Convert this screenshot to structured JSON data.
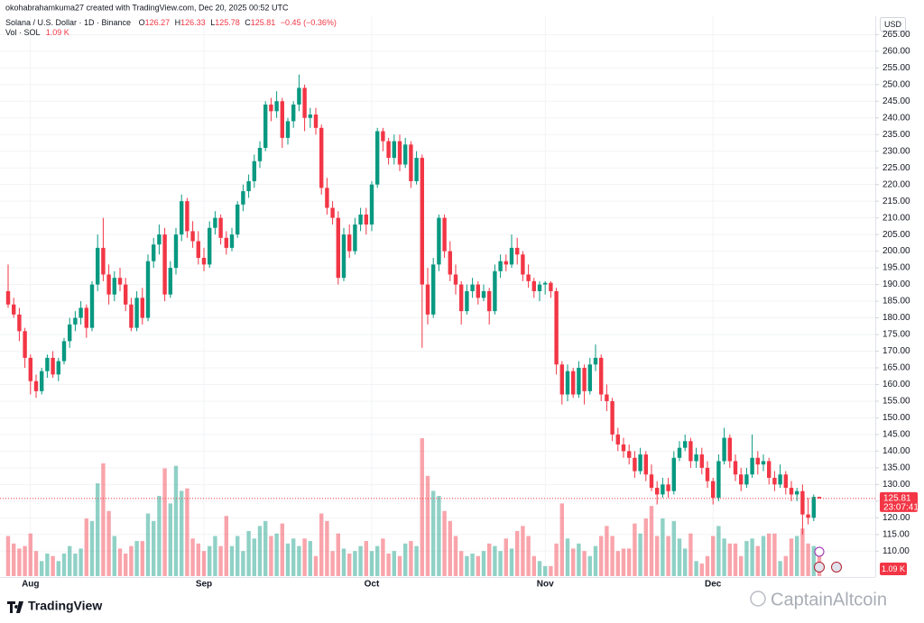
{
  "header": {
    "attribution": "okohabrahamkuma27 created with TradingView.com, Dec 20, 2025 00:52 UTC",
    "symbol": "Solana / U.S. Dollar · 1D · Binance",
    "o": "O",
    "h": "H",
    "l": "L",
    "c": "C",
    "change": "−0.45 (−0.36%)",
    "vol_label": "Vol · SOL",
    "vol_value": "1.09 K",
    "currency": "USD",
    "countdown": "23:07:41",
    "logo": "TradingView",
    "watermark": "CaptainAltcoin"
  },
  "chart_data": {
    "type": "candlestick",
    "up_color": "#089981",
    "down_color": "#f23645",
    "grid": true,
    "ylim": [
      102.5,
      270.5
    ],
    "yticks": [
      {
        "value": 110,
        "label": "110.00"
      },
      {
        "value": 115,
        "label": "115.00"
      },
      {
        "value": 120,
        "label": "120.00"
      },
      {
        "value": 125,
        "label": "125.00"
      },
      {
        "value": 130,
        "label": "130.00"
      },
      {
        "value": 135,
        "label": "135.00"
      },
      {
        "value": 140,
        "label": "140.00"
      },
      {
        "value": 145,
        "label": "145.00"
      },
      {
        "value": 150,
        "label": "150.00"
      },
      {
        "value": 155,
        "label": "155.00"
      },
      {
        "value": 160,
        "label": "160.00"
      },
      {
        "value": 165,
        "label": "165.00"
      },
      {
        "value": 170,
        "label": "170.00"
      },
      {
        "value": 175,
        "label": "175.00"
      },
      {
        "value": 180,
        "label": "180.00"
      },
      {
        "value": 185,
        "label": "185.00"
      },
      {
        "value": 190,
        "label": "190.00"
      },
      {
        "value": 195,
        "label": "195.00"
      },
      {
        "value": 200,
        "label": "200.00"
      },
      {
        "value": 205,
        "label": "205.00"
      },
      {
        "value": 210,
        "label": "210.00"
      },
      {
        "value": 215,
        "label": "215.00"
      },
      {
        "value": 220,
        "label": "220.00"
      },
      {
        "value": 225,
        "label": "225.00"
      },
      {
        "value": 230,
        "label": "230.00"
      },
      {
        "value": 235,
        "label": "235.00"
      },
      {
        "value": 240,
        "label": "240.00"
      },
      {
        "value": 245,
        "label": "245.00"
      },
      {
        "value": 250,
        "label": "250.00"
      },
      {
        "value": 255,
        "label": "255.00"
      },
      {
        "value": 260,
        "label": "260.00"
      },
      {
        "value": 265,
        "label": "265.00"
      }
    ],
    "xticks": [
      {
        "value": 4,
        "label": "Aug"
      },
      {
        "value": 35,
        "label": "Sep"
      },
      {
        "value": 65,
        "label": "Oct"
      },
      {
        "value": 96,
        "label": "Nov"
      },
      {
        "value": 126,
        "label": "Dec"
      }
    ],
    "ohlc": [
      [
        188,
        196,
        183,
        184
      ],
      [
        184,
        186,
        180,
        181
      ],
      [
        181,
        183,
        173,
        176
      ],
      [
        176,
        177,
        165,
        168
      ],
      [
        168,
        169,
        157,
        161
      ],
      [
        161,
        163,
        156,
        158
      ],
      [
        158,
        165,
        157,
        164
      ],
      [
        164,
        169,
        162,
        168
      ],
      [
        168,
        170,
        162,
        163
      ],
      [
        163,
        168,
        161,
        167
      ],
      [
        167,
        174,
        166,
        173
      ],
      [
        173,
        180,
        171,
        178
      ],
      [
        178,
        182,
        176,
        180
      ],
      [
        180,
        185,
        178,
        183
      ],
      [
        183,
        184,
        174,
        177
      ],
      [
        177,
        191,
        176,
        190
      ],
      [
        190,
        205,
        188,
        201
      ],
      [
        201,
        210,
        191,
        193
      ],
      [
        193,
        196,
        184,
        187
      ],
      [
        187,
        194,
        185,
        192
      ],
      [
        192,
        195,
        188,
        190
      ],
      [
        190,
        192,
        182,
        184
      ],
      [
        184,
        186,
        176,
        177
      ],
      [
        177,
        188,
        176,
        186
      ],
      [
        186,
        189,
        178,
        180
      ],
      [
        180,
        199,
        179,
        197
      ],
      [
        197,
        204,
        195,
        202
      ],
      [
        202,
        208,
        199,
        205
      ],
      [
        205,
        207,
        185,
        187
      ],
      [
        187,
        197,
        186,
        195
      ],
      [
        195,
        207,
        193,
        205
      ],
      [
        205,
        217,
        203,
        215
      ],
      [
        215,
        216,
        204,
        206
      ],
      [
        206,
        209,
        201,
        203
      ],
      [
        203,
        206,
        196,
        198
      ],
      [
        198,
        201,
        194,
        196
      ],
      [
        196,
        209,
        195,
        207
      ],
      [
        207,
        212,
        205,
        210
      ],
      [
        210,
        211,
        202,
        204
      ],
      [
        204,
        206,
        199,
        201
      ],
      [
        201,
        207,
        200,
        205
      ],
      [
        205,
        215,
        204,
        214
      ],
      [
        214,
        220,
        212,
        218
      ],
      [
        218,
        223,
        216,
        221
      ],
      [
        221,
        229,
        219,
        227
      ],
      [
        227,
        233,
        225,
        231
      ],
      [
        231,
        245,
        230,
        244
      ],
      [
        244,
        246,
        239,
        242
      ],
      [
        242,
        248,
        240,
        245
      ],
      [
        245,
        246,
        231,
        234
      ],
      [
        234,
        240,
        232,
        239
      ],
      [
        239,
        245,
        237,
        244
      ],
      [
        244,
        253,
        242,
        249
      ],
      [
        249,
        250,
        236,
        240
      ],
      [
        240,
        243,
        237,
        241
      ],
      [
        241,
        243,
        235,
        237
      ],
      [
        237,
        238,
        217,
        219
      ],
      [
        219,
        222,
        211,
        213
      ],
      [
        213,
        215,
        208,
        210
      ],
      [
        210,
        212,
        190,
        192
      ],
      [
        192,
        207,
        191,
        205
      ],
      [
        205,
        208,
        198,
        200
      ],
      [
        200,
        210,
        199,
        208
      ],
      [
        208,
        213,
        206,
        211
      ],
      [
        211,
        213,
        205,
        208
      ],
      [
        208,
        221,
        206,
        220
      ],
      [
        220,
        237,
        219,
        236
      ],
      [
        236,
        237,
        230,
        233
      ],
      [
        233,
        234,
        226,
        228
      ],
      [
        228,
        235,
        226,
        233
      ],
      [
        233,
        235,
        224,
        226
      ],
      [
        226,
        234,
        225,
        232
      ],
      [
        232,
        233,
        219,
        221
      ],
      [
        221,
        230,
        220,
        228
      ],
      [
        228,
        229,
        171,
        190
      ],
      [
        190,
        195,
        178,
        181
      ],
      [
        181,
        198,
        180,
        196
      ],
      [
        196,
        211,
        194,
        210
      ],
      [
        210,
        211,
        198,
        200
      ],
      [
        200,
        203,
        191,
        193
      ],
      [
        193,
        196,
        187,
        190
      ],
      [
        190,
        191,
        178,
        182
      ],
      [
        182,
        190,
        181,
        188
      ],
      [
        188,
        192,
        186,
        190
      ],
      [
        190,
        191,
        184,
        186
      ],
      [
        186,
        190,
        185,
        188
      ],
      [
        188,
        189,
        178,
        182
      ],
      [
        182,
        196,
        181,
        194
      ],
      [
        194,
        199,
        192,
        197
      ],
      [
        197,
        199,
        194,
        196
      ],
      [
        196,
        205,
        195,
        201
      ],
      [
        201,
        204,
        196,
        199
      ],
      [
        199,
        200,
        191,
        193
      ],
      [
        193,
        196,
        189,
        191
      ],
      [
        191,
        192,
        186,
        188
      ],
      [
        188,
        191,
        185,
        190
      ],
      [
        190,
        191,
        187,
        190.5
      ],
      [
        190.5,
        191,
        186,
        188
      ],
      [
        188,
        189,
        163,
        166
      ],
      [
        166,
        167,
        154,
        157
      ],
      [
        157,
        166,
        155,
        164
      ],
      [
        164,
        165,
        156,
        157
      ],
      [
        157,
        167,
        156,
        165
      ],
      [
        165,
        166,
        154,
        158
      ],
      [
        158,
        168,
        157,
        166
      ],
      [
        166,
        172,
        164,
        168
      ],
      [
        168,
        169,
        155,
        157
      ],
      [
        157,
        160,
        152,
        155
      ],
      [
        155,
        156,
        143,
        145
      ],
      [
        145,
        147,
        140,
        142
      ],
      [
        142,
        144,
        138,
        140
      ],
      [
        140,
        142,
        136,
        138
      ],
      [
        138,
        140,
        132,
        134
      ],
      [
        134,
        141,
        133,
        139
      ],
      [
        139,
        140,
        131,
        133
      ],
      [
        133,
        136,
        128,
        129
      ],
      [
        129,
        131,
        124,
        127
      ],
      [
        127,
        132,
        126,
        130
      ],
      [
        130,
        132,
        126,
        128
      ],
      [
        128,
        140,
        127,
        138
      ],
      [
        138,
        143,
        137,
        141
      ],
      [
        141,
        145,
        140,
        143
      ],
      [
        143,
        144,
        135,
        137
      ],
      [
        137,
        141,
        135,
        139
      ],
      [
        139,
        141,
        133,
        135
      ],
      [
        135,
        137,
        129,
        131
      ],
      [
        131,
        132,
        124,
        126
      ],
      [
        126,
        139,
        125,
        137
      ],
      [
        137,
        147,
        136,
        144
      ],
      [
        144,
        145,
        135,
        137
      ],
      [
        137,
        139,
        131,
        133
      ],
      [
        133,
        135,
        128,
        130
      ],
      [
        130,
        135,
        129,
        133
      ],
      [
        133,
        145,
        132,
        138
      ],
      [
        138,
        140,
        133,
        136
      ],
      [
        136,
        139,
        134,
        137
      ],
      [
        137,
        138,
        130,
        132
      ],
      [
        132,
        134,
        128,
        130
      ],
      [
        130,
        136,
        129,
        133
      ],
      [
        133,
        134,
        127,
        129
      ],
      [
        129,
        131,
        125,
        127
      ],
      [
        127,
        129,
        125,
        128
      ],
      [
        128,
        130,
        115,
        121
      ],
      [
        121,
        126,
        118,
        120
      ],
      [
        120,
        127,
        119,
        126.27
      ],
      [
        126.27,
        126.33,
        125.78,
        125.81
      ]
    ],
    "volume": [
      1.6,
      1.3,
      1.1,
      1.2,
      1.7,
      1.0,
      0.6,
      0.9,
      0.8,
      0.6,
      0.9,
      1.2,
      0.9,
      1.1,
      2.3,
      2.2,
      3.7,
      4.5,
      2.6,
      1.6,
      1.1,
      0.9,
      1.2,
      1.4,
      1.4,
      2.5,
      2.2,
      3.2,
      4.3,
      2.9,
      4.4,
      3.4,
      3.5,
      1.5,
      1.3,
      1.0,
      1.2,
      1.6,
      1.2,
      2.4,
      1.2,
      1.6,
      1.0,
      1.8,
      1.5,
      2.0,
      2.2,
      1.6,
      1.7,
      2.1,
      1.3,
      1.5,
      1.2,
      1.5,
      1.4,
      0.8,
      2.5,
      2.2,
      1.0,
      1.7,
      1.1,
      0.9,
      1.0,
      1.2,
      1.4,
      1.0,
      1.2,
      1.5,
      0.9,
      1.0,
      0.8,
      1.3,
      1.4,
      1.2,
      5.5,
      4.0,
      3.4,
      3.2,
      2.6,
      2.2,
      1.6,
      1.0,
      0.8,
      0.9,
      0.8,
      1.0,
      1.3,
      1.2,
      1.0,
      1.5,
      1.1,
      1.8,
      2.0,
      1.6,
      0.8,
      0.6,
      0.4,
      0.4,
      1.3,
      2.9,
      1.5,
      1.1,
      1.3,
      1.0,
      0.8,
      1.2,
      1.6,
      2.0,
      1.6,
      1.0,
      1.1,
      1.1,
      2.1,
      1.7,
      2.3,
      2.8,
      1.6,
      2.3,
      1.6,
      2.2,
      1.5,
      1.1,
      1.7,
      0.6,
      0.5,
      0.8,
      1.6,
      2.0,
      1.5,
      1.3,
      1.3,
      0.8,
      1.4,
      1.5,
      1.2,
      1.6,
      1.7,
      1.7,
      0.6,
      0.8,
      1.5,
      1.6,
      1.9,
      1.3,
      1.2,
      1.09
    ]
  }
}
